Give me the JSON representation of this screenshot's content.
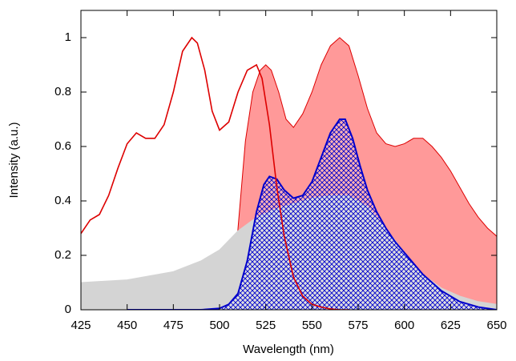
{
  "chart_data": {
    "type": "line",
    "xlabel": "Wavelength (nm)",
    "ylabel": "Intensity (a.u.)",
    "xlim": [
      425,
      650
    ],
    "xticks": [
      425,
      450,
      475,
      500,
      525,
      550,
      575,
      600,
      625,
      650
    ],
    "ylim": [
      0,
      1.1
    ],
    "yticks": [
      0,
      0.2,
      0.4,
      0.6,
      0.8,
      1
    ],
    "series": [
      {
        "color": "#dd0000",
        "fill": "#ff9999",
        "x": [
          507,
          510,
          514,
          518,
          522,
          525,
          528,
          532,
          536,
          540,
          545,
          550,
          555,
          560,
          565,
          570,
          575,
          580,
          585,
          590,
          595,
          600,
          605,
          610,
          615,
          620,
          625,
          630,
          635,
          640,
          645,
          650
        ],
        "values": [
          0,
          0.3,
          0.62,
          0.8,
          0.88,
          0.9,
          0.88,
          0.8,
          0.7,
          0.67,
          0.72,
          0.8,
          0.9,
          0.97,
          1.0,
          0.97,
          0.86,
          0.74,
          0.65,
          0.61,
          0.6,
          0.61,
          0.63,
          0.63,
          0.6,
          0.56,
          0.51,
          0.45,
          0.39,
          0.34,
          0.3,
          0.27
        ]
      },
      {
        "color": "#d4d4d4",
        "fill": "#d4d4d4",
        "x": [
          425,
          450,
          475,
          490,
          500,
          510,
          520,
          530,
          540,
          550,
          560,
          570,
          580,
          590,
          600,
          610,
          620,
          630,
          640,
          650
        ],
        "values": [
          0.1,
          0.11,
          0.14,
          0.18,
          0.22,
          0.29,
          0.34,
          0.37,
          0.39,
          0.41,
          0.42,
          0.42,
          0.38,
          0.3,
          0.21,
          0.13,
          0.08,
          0.05,
          0.03,
          0.02
        ]
      },
      {
        "color": "#0000cc",
        "fill": "#0000cc",
        "hatch": true,
        "x": [
          450,
          490,
          500,
          505,
          510,
          515,
          520,
          524,
          527,
          531,
          535,
          540,
          545,
          550,
          555,
          560,
          565,
          568,
          572,
          576,
          580,
          585,
          590,
          595,
          600,
          610,
          620,
          630,
          640,
          650
        ],
        "values": [
          0,
          0,
          0.005,
          0.02,
          0.06,
          0.18,
          0.36,
          0.46,
          0.49,
          0.48,
          0.44,
          0.41,
          0.42,
          0.47,
          0.56,
          0.65,
          0.7,
          0.7,
          0.63,
          0.53,
          0.44,
          0.36,
          0.3,
          0.25,
          0.21,
          0.13,
          0.07,
          0.03,
          0.01,
          0
        ]
      },
      {
        "color": "#dd0000",
        "x": [
          425,
          430,
          435,
          440,
          445,
          450,
          455,
          460,
          465,
          470,
          475,
          480,
          485,
          488,
          492,
          496,
          500,
          505,
          510,
          515,
          520,
          523,
          527,
          531,
          535,
          540,
          545,
          550,
          555,
          560,
          565,
          570
        ],
        "values": [
          0.28,
          0.33,
          0.35,
          0.42,
          0.52,
          0.61,
          0.65,
          0.63,
          0.63,
          0.68,
          0.8,
          0.95,
          1.0,
          0.98,
          0.88,
          0.73,
          0.66,
          0.69,
          0.8,
          0.88,
          0.9,
          0.85,
          0.68,
          0.45,
          0.27,
          0.12,
          0.05,
          0.02,
          0.01,
          0.003,
          0,
          0
        ]
      }
    ]
  }
}
